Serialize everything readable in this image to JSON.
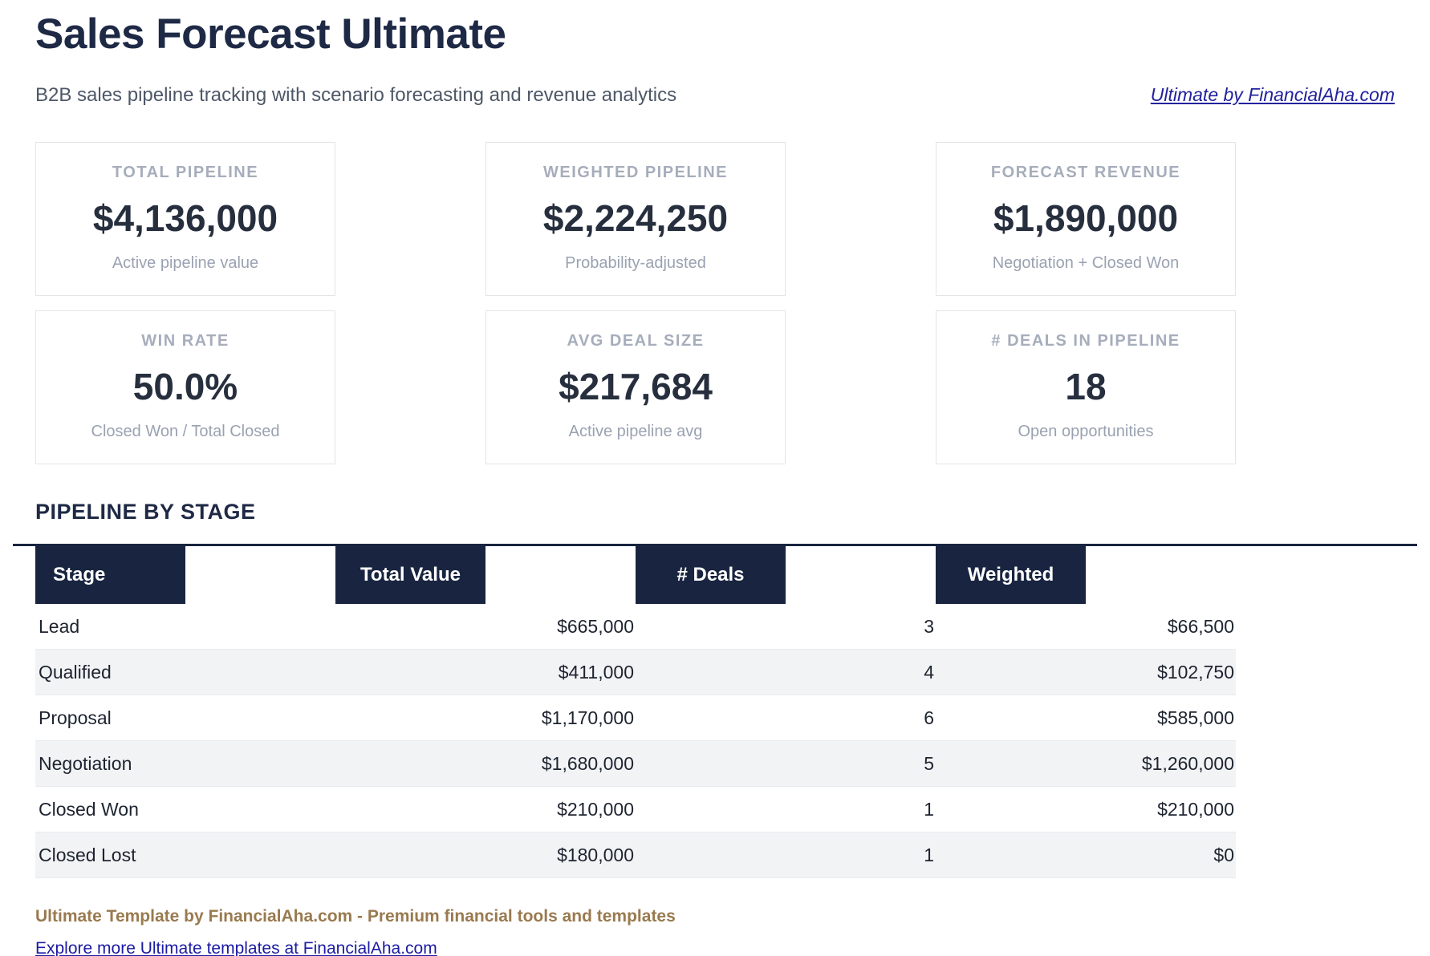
{
  "header": {
    "title": "Sales Forecast Ultimate",
    "subtitle": "B2B sales pipeline tracking with scenario forecasting and revenue analytics",
    "brand_link": "Ultimate by FinancialAha.com"
  },
  "kpi_cards": [
    {
      "label": "TOTAL PIPELINE",
      "value": "$4,136,000",
      "caption": "Active pipeline value"
    },
    {
      "label": "WEIGHTED PIPELINE",
      "value": "$2,224,250",
      "caption": "Probability-adjusted"
    },
    {
      "label": "FORECAST REVENUE",
      "value": "$1,890,000",
      "caption": "Negotiation + Closed Won"
    },
    {
      "label": "WIN RATE",
      "value": "50.0%",
      "caption": "Closed Won / Total Closed"
    },
    {
      "label": "AVG DEAL SIZE",
      "value": "$217,684",
      "caption": "Active pipeline avg"
    },
    {
      "label": "# DEALS IN PIPELINE",
      "value": "18",
      "caption": "Open opportunities"
    }
  ],
  "pipeline_table": {
    "section_title": "PIPELINE BY STAGE",
    "columns": [
      "Stage",
      "Total Value",
      "# Deals",
      "Weighted"
    ],
    "rows": [
      {
        "stage": "Lead",
        "total_value": "$665,000",
        "deals": "3",
        "weighted": "$66,500"
      },
      {
        "stage": "Qualified",
        "total_value": "$411,000",
        "deals": "4",
        "weighted": "$102,750"
      },
      {
        "stage": "Proposal",
        "total_value": "$1,170,000",
        "deals": "6",
        "weighted": "$585,000"
      },
      {
        "stage": "Negotiation",
        "total_value": "$1,680,000",
        "deals": "5",
        "weighted": "$1,260,000"
      },
      {
        "stage": "Closed Won",
        "total_value": "$210,000",
        "deals": "1",
        "weighted": "$210,000"
      },
      {
        "stage": "Closed Lost",
        "total_value": "$180,000",
        "deals": "1",
        "weighted": "$0"
      }
    ]
  },
  "footer": {
    "tagline": "Ultimate Template by FinancialAha.com - Premium financial tools and templates",
    "link": "Explore more Ultimate templates at FinancialAha.com"
  },
  "colors": {
    "navy_heading": "#1e2945",
    "table_header_bg": "#192540",
    "value_text": "#272f3e",
    "kpi_label_gray": "#a6adbb",
    "caption_gray": "#9aa2b1",
    "subtitle_gray": "#4d5767",
    "zebra_row_bg": "#f2f3f5",
    "brand_brown": "#997a4e",
    "link_blue": "#22229e"
  }
}
